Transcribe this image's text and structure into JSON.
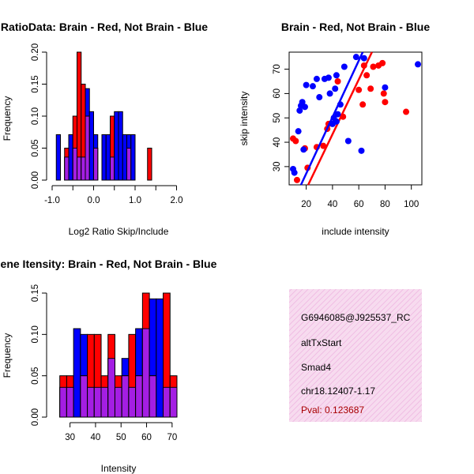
{
  "colors": {
    "brain": "#ff0000",
    "not_brain": "#0000ff",
    "overlap": "#a020f0",
    "pval": "#a80000"
  },
  "info": {
    "probe_id": "G6946085@J925537_RC",
    "event_type": "altTxStart",
    "gene": "Smad4",
    "location": "chr18.12407-1.17",
    "pval": "Pval: 0.123687"
  },
  "chart_data": [
    {
      "id": "ratio",
      "type": "bar",
      "title": "RatioData: Brain - Red, Not Brain - Blue",
      "xlabel": "Log2 Ratio Skip/Include",
      "ylabel": "Frequency",
      "xlim": [
        -1.0,
        2.2
      ],
      "ylim": [
        0,
        0.2
      ],
      "xticks": [
        -1.0,
        0.0,
        1.0,
        2.0
      ],
      "xtick_labels": [
        "-1.0",
        "0.0",
        "1.0",
        "2.0"
      ],
      "yticks": [
        0,
        0.05,
        0.1,
        0.15,
        0.2
      ],
      "ytick_labels": [
        "0.00",
        "0.05",
        "0.10",
        "0.15",
        "0.20"
      ],
      "bin_start": -0.9,
      "bin_width": 0.1,
      "series": [
        {
          "name": "Brain",
          "values": [
            0,
            0,
            0.05,
            0,
            0.1,
            0.2,
            0.15,
            0.1,
            0,
            0.05,
            0,
            0,
            0,
            0.1,
            0,
            0,
            0,
            0.05,
            0,
            0,
            0,
            0,
            0.05
          ]
        },
        {
          "name": "Not Brain",
          "values": [
            0.071,
            0,
            0.036,
            0.071,
            0.05,
            0.036,
            0.036,
            0.143,
            0.107,
            0.071,
            0,
            0.071,
            0.071,
            0.036,
            0.107,
            0.107,
            0.071,
            0.071,
            0.071,
            0,
            0,
            0,
            0
          ]
        }
      ]
    },
    {
      "id": "scatter",
      "type": "scatter",
      "title": "Brain - Red, Not Brain - Blue",
      "xlabel": "include intensity",
      "ylabel": "skip intensity",
      "xlim": [
        7,
        108
      ],
      "ylim": [
        22.5,
        77
      ],
      "xticks": [
        20,
        40,
        60,
        80,
        100
      ],
      "xtick_labels": [
        "20",
        "40",
        "60",
        "80",
        "100"
      ],
      "yticks": [
        30,
        40,
        50,
        60,
        70
      ],
      "ytick_labels": [
        "30",
        "40",
        "50",
        "60",
        "70"
      ],
      "series": [
        {
          "name": "Brain",
          "color": "red",
          "x": [
            10,
            12,
            13,
            19,
            21,
            28,
            33,
            36,
            37,
            44,
            48,
            60,
            63,
            64,
            66,
            69,
            71,
            75,
            78,
            79,
            80,
            96
          ],
          "y": [
            41.5,
            40.5,
            24.5,
            37.5,
            29.5,
            38,
            38.5,
            45.5,
            47.5,
            65,
            50.5,
            61.5,
            55.5,
            71.5,
            67.5,
            62,
            71,
            71.5,
            72.5,
            60,
            56.5,
            52.5
          ],
          "fit": [
            [
              21.5,
              22.5
            ],
            [
              70,
              77
            ]
          ]
        },
        {
          "name": "Not Brain",
          "color": "blue",
          "x": [
            10,
            11,
            14,
            15,
            16,
            17,
            18,
            19,
            20,
            25,
            28,
            30,
            34,
            37,
            38,
            40,
            41,
            42,
            43,
            43,
            44,
            46,
            49,
            52,
            58,
            62,
            64,
            80,
            105
          ],
          "y": [
            29,
            27.5,
            44.5,
            53,
            55,
            56.5,
            37,
            54.5,
            63.5,
            63,
            66,
            58.5,
            66,
            66.5,
            60,
            47.5,
            50,
            62,
            67.5,
            48.5,
            51.5,
            55.5,
            71,
            40.5,
            75,
            36.5,
            74.5,
            62.5,
            72
          ],
          "fit": [
            [
              16,
              22.5
            ],
            [
              63,
              77
            ]
          ]
        }
      ]
    },
    {
      "id": "intensity",
      "type": "bar",
      "title": "Gene Itensity: Brain - Red, Not Brain - Blue",
      "xlabel": "Intensity",
      "ylabel": "Frequency",
      "xlim": [
        23,
        75
      ],
      "ylim": [
        0,
        0.15
      ],
      "xticks": [
        30,
        40,
        50,
        60,
        70
      ],
      "xtick_labels": [
        "30",
        "40",
        "50",
        "60",
        "70"
      ],
      "yticks": [
        0,
        0.05,
        0.1,
        0.15
      ],
      "ytick_labels": [
        "0.00",
        "0.05",
        "0.10",
        "0.15"
      ],
      "bin_start": 26,
      "bin_width": 2.7,
      "series": [
        {
          "name": "Brain",
          "values": [
            0.05,
            0.05,
            0,
            0.05,
            0.1,
            0.1,
            0.05,
            0.1,
            0.05,
            0.05,
            0.1,
            0.05,
            0.15,
            0.05,
            0,
            0.15,
            0.05
          ]
        },
        {
          "name": "Not Brain",
          "values": [
            0.036,
            0.036,
            0.107,
            0.1,
            0.036,
            0.036,
            0.036,
            0.071,
            0.036,
            0.071,
            0.036,
            0.107,
            0.107,
            0.143,
            0.143,
            0.036,
            0.036
          ]
        }
      ]
    }
  ]
}
